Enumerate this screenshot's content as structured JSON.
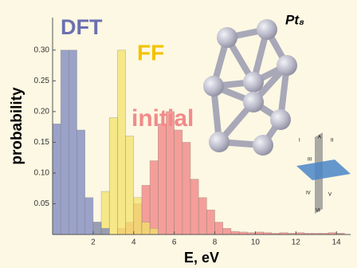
{
  "chart_data": {
    "type": "histogram",
    "x_label": "E, eV",
    "y_label": "probability",
    "annotation": "Pt₈",
    "inset_labels": [
      "I",
      "A",
      "II",
      "III",
      "IV",
      "V",
      "VI"
    ],
    "xlim": [
      0,
      14.7
    ],
    "ylim": [
      0,
      0.353
    ],
    "xticks": [
      2,
      4,
      6,
      8,
      10,
      12,
      14
    ],
    "yticks": [
      {
        "value": 0.05,
        "label": "0.05"
      },
      {
        "value": 0.1,
        "label": "0.10"
      },
      {
        "value": 0.15,
        "label": "0.15"
      },
      {
        "value": 0.2,
        "label": "0.20"
      },
      {
        "value": 0.25,
        "label": "0.25"
      },
      {
        "value": 0.3,
        "label": "0.30"
      }
    ],
    "series": [
      {
        "name": "initial",
        "color": "#f08080",
        "bins": [
          3.2,
          3.6,
          4.0,
          4.4,
          4.8,
          5.2,
          5.6,
          6.0,
          6.4,
          6.8,
          7.2,
          7.6,
          8.0,
          8.4,
          8.8,
          9.2,
          9.6,
          10.0,
          10.4,
          10.8,
          11.2,
          11.6,
          12.0,
          12.4,
          12.8,
          13.2,
          13.6,
          14.0,
          14.4
        ],
        "values": [
          0.01,
          0.02,
          0.05,
          0.08,
          0.12,
          0.18,
          0.2,
          0.17,
          0.15,
          0.09,
          0.06,
          0.04,
          0.02,
          0.01,
          0.005,
          0.004,
          0.003,
          0.004,
          0.003,
          0.002,
          0.003,
          0.002,
          0.003,
          0.002,
          0.002,
          0.002,
          0.003,
          0.002
        ]
      },
      {
        "name": "FF",
        "color": "#f3e36a",
        "bins": [
          2.0,
          2.4,
          2.8,
          3.2,
          3.6,
          4.0,
          4.4,
          4.8,
          5.2
        ],
        "values": [
          0.02,
          0.07,
          0.19,
          0.3,
          0.16,
          0.06,
          0.02,
          0.01
        ]
      },
      {
        "name": "DFT",
        "color": "#7a86c0",
        "bins": [
          0,
          0.4,
          0.8,
          1.2,
          1.6,
          2.0,
          2.4,
          2.8
        ],
        "values": [
          0.18,
          0.3,
          0.3,
          0.17,
          0.06,
          0.02,
          0.01
        ]
      }
    ]
  }
}
